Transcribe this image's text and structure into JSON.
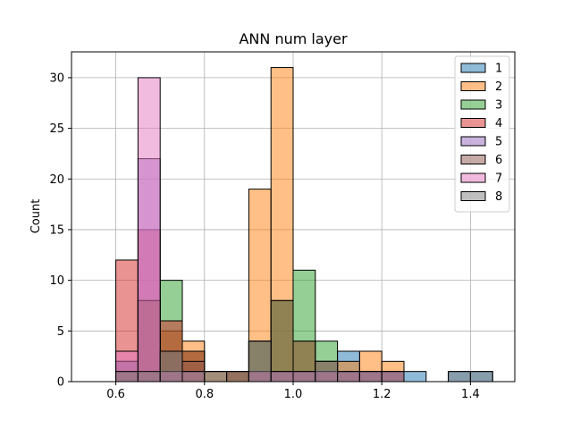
{
  "chart_data": {
    "type": "bar",
    "title": "ANN num layer",
    "xlabel": "",
    "ylabel": "Count",
    "xlim": [
      0.5,
      1.5
    ],
    "ylim": [
      0,
      32.55
    ],
    "x_ticks": [
      0.6,
      0.8,
      1.0,
      1.2,
      1.4
    ],
    "x_tick_labels": [
      "0.6",
      "0.8",
      "1.0",
      "1.2",
      "1.4"
    ],
    "y_ticks": [
      0,
      5,
      10,
      15,
      20,
      25,
      30
    ],
    "y_tick_labels": [
      "0",
      "5",
      "10",
      "15",
      "20",
      "25",
      "30"
    ],
    "grid": true,
    "legend_position": "top-right",
    "bin_width": 0.05,
    "bin_starts": [
      0.6,
      0.65,
      0.7,
      0.75,
      0.8,
      0.85,
      0.9,
      0.95,
      1.0,
      1.05,
      1.1,
      1.15,
      1.2,
      1.25,
      1.3,
      1.35,
      1.4
    ],
    "series": [
      {
        "name": "1",
        "color": "#1f77b4",
        "values": [
          1,
          1,
          3,
          1,
          1,
          1,
          1,
          1,
          1,
          1,
          3,
          1,
          1,
          1,
          0,
          1,
          1
        ]
      },
      {
        "name": "2",
        "color": "#ff7f0e",
        "values": [
          1,
          1,
          5,
          4,
          1,
          1,
          19,
          31,
          4,
          2,
          2,
          3,
          2,
          0,
          0,
          0,
          0
        ]
      },
      {
        "name": "3",
        "color": "#2ca02c",
        "values": [
          2,
          8,
          10,
          3,
          0,
          1,
          4,
          8,
          11,
          4,
          1,
          1,
          1,
          0,
          0,
          0,
          0
        ]
      },
      {
        "name": "4",
        "color": "#d62728",
        "values": [
          12,
          15,
          6,
          3,
          0,
          1,
          1,
          1,
          1,
          1,
          1,
          1,
          1,
          0,
          0,
          0,
          0
        ]
      },
      {
        "name": "5",
        "color": "#9467bd",
        "values": [
          2,
          22,
          1,
          0,
          0,
          0,
          1,
          1,
          1,
          1,
          1,
          1,
          1,
          0,
          0,
          0,
          0
        ]
      },
      {
        "name": "6",
        "color": "#8c564b",
        "values": [
          1,
          8,
          3,
          2,
          0,
          0,
          4,
          8,
          4,
          2,
          1,
          1,
          1,
          0,
          0,
          0,
          0
        ]
      },
      {
        "name": "7",
        "color": "#e377c2",
        "values": [
          3,
          30,
          1,
          1,
          0,
          0,
          1,
          1,
          1,
          1,
          1,
          1,
          1,
          0,
          0,
          0,
          0
        ]
      },
      {
        "name": "8",
        "color": "#7f7f7f",
        "values": [
          1,
          1,
          3,
          1,
          1,
          1,
          4,
          1,
          1,
          2,
          1,
          1,
          1,
          0,
          0,
          1,
          1
        ]
      }
    ]
  }
}
